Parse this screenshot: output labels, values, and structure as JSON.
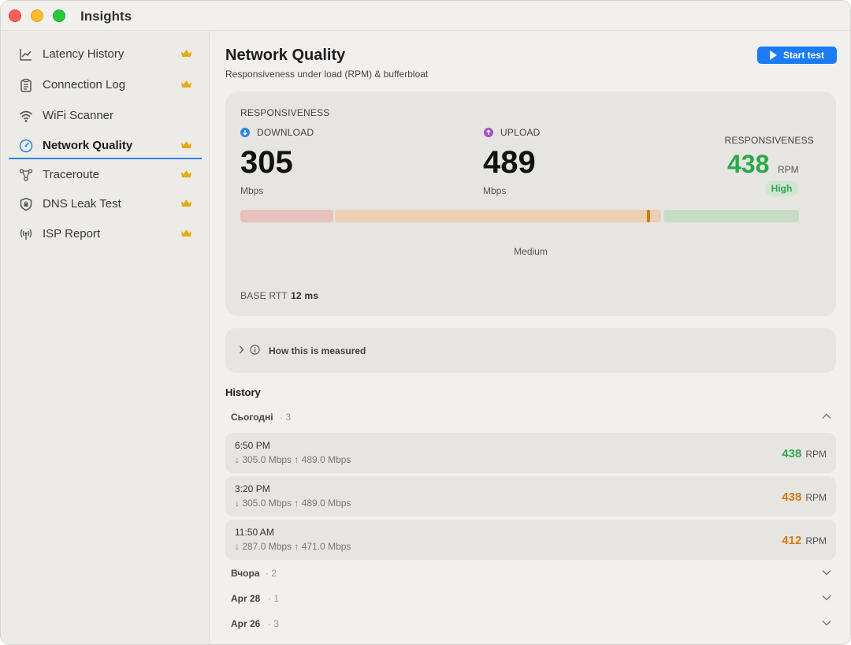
{
  "window": {
    "title": "Insights"
  },
  "sidebar": {
    "items": [
      {
        "label": "Latency History",
        "icon": "chart-line-icon",
        "premium": true
      },
      {
        "label": "Connection Log",
        "icon": "clipboard-icon",
        "premium": true
      },
      {
        "label": "WiFi Scanner",
        "icon": "wifi-icon",
        "premium": false
      },
      {
        "label": "Network Quality",
        "icon": "gauge-icon",
        "premium": true,
        "active": true
      },
      {
        "label": "Traceroute",
        "icon": "network-nodes-icon",
        "premium": true
      },
      {
        "label": "DNS Leak Test",
        "icon": "shield-icon",
        "premium": true
      },
      {
        "label": "ISP Report",
        "icon": "antenna-icon",
        "premium": true
      }
    ],
    "crown_color": "#e8a917"
  },
  "header": {
    "title": "Network Quality",
    "subtitle": "Responsiveness under load (RPM) & bufferbloat",
    "start_button": "Start test"
  },
  "summary": {
    "heading": "RESPONSIVENESS",
    "download": {
      "label": "DOWNLOAD",
      "value": "305",
      "unit": "Mbps"
    },
    "upload": {
      "label": "UPLOAD",
      "value": "489",
      "unit": "Mbps"
    },
    "responsiveness": {
      "label": "RESPONSIVENESS",
      "value": "438",
      "unit": "RPM",
      "badge": "High",
      "color": "#2aa94b"
    },
    "gauge": {
      "caption": "Medium",
      "marker_fraction": 0.73
    },
    "base_rtt": {
      "label": "BASE RTT",
      "value": "12 ms"
    }
  },
  "how_measured": {
    "label": "How this is measured"
  },
  "history": {
    "title": "History",
    "groups": [
      {
        "name": "Сьогодні",
        "count": "· 3",
        "expanded": true,
        "rows": [
          {
            "time": "6:50 PM",
            "speeds": "↓ 305.0 Mbps  ↑ 489.0 Mbps",
            "rpm": "438",
            "rpm_unit": "RPM",
            "color": "#2aa94b"
          },
          {
            "time": "3:20 PM",
            "speeds": "↓ 305.0 Mbps  ↑ 489.0 Mbps",
            "rpm": "438",
            "rpm_unit": "RPM",
            "color": "#d47a12"
          },
          {
            "time": "11:50 AM",
            "speeds": "↓ 287.0 Mbps  ↑ 471.0 Mbps",
            "rpm": "412",
            "rpm_unit": "RPM",
            "color": "#d47a12"
          }
        ]
      },
      {
        "name": "Вчора",
        "count": "· 2",
        "expanded": false
      },
      {
        "name": "Apr 28",
        "count": "· 1",
        "expanded": false
      },
      {
        "name": "Apr 26",
        "count": "· 3",
        "expanded": false
      }
    ]
  }
}
